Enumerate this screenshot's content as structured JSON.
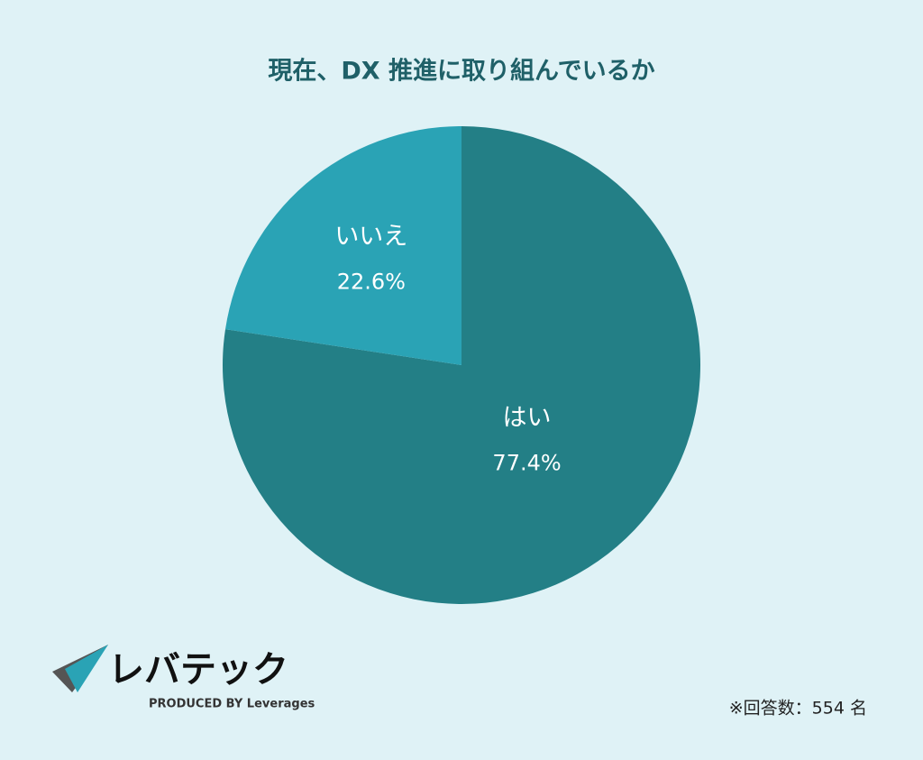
{
  "chart_data": {
    "type": "pie",
    "title": "現在、DX 推進に取り組んでいるか",
    "categories": [
      "はい",
      "いいえ"
    ],
    "values": [
      77.4,
      22.6
    ],
    "value_labels": [
      "77.4%",
      "22.6%"
    ],
    "colors": [
      "#237f86",
      "#2aa3b5"
    ],
    "note": "※回答数：554 名"
  },
  "logo": {
    "name": "レバテック",
    "tagline": "PRODUCED BY Leverages"
  }
}
